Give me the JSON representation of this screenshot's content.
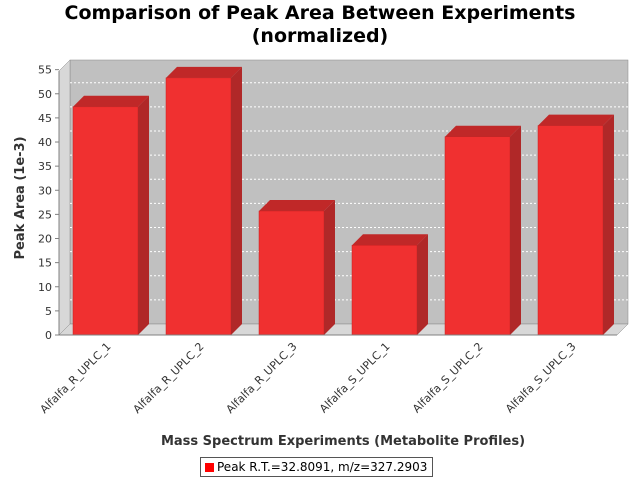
{
  "chart_data": {
    "type": "bar",
    "title": "Comparison of Peak Area Between Experiments (normalized)",
    "title_lines": [
      "Comparison of Peak Area Between Experiments",
      "(normalized)"
    ],
    "xlabel": "Mass Spectrum Experiments (Metabolite Profiles)",
    "ylabel": "Peak Area (1e-3)",
    "categories": [
      "Alfalfa_R_UPLC_1",
      "Alfalfa_R_UPLC_2",
      "Alfalfa_R_UPLC_3",
      "Alfalfa_S_UPLC_1",
      "Alfalfa_S_UPLC_2",
      "Alfalfa_S_UPLC_3"
    ],
    "series": [
      {
        "name": "Peak R.T.=32.8091, m/z=327.2903",
        "values": [
          47.3,
          53.3,
          25.7,
          18.6,
          41.1,
          43.4
        ],
        "color": "#ff0000"
      }
    ],
    "ylim": [
      0,
      57
    ],
    "yticks": [
      0,
      5,
      10,
      15,
      20,
      25,
      30,
      35,
      40,
      45,
      50,
      55
    ],
    "grid": true,
    "legend_position": "bottom",
    "style": "3d-bar"
  }
}
